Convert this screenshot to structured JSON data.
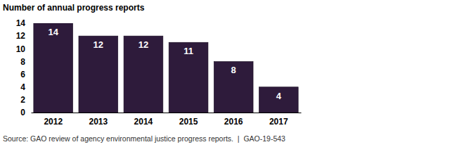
{
  "chart_data": {
    "type": "bar",
    "title": "Number of annual progress reports",
    "categories": [
      "2012",
      "2013",
      "2014",
      "2015",
      "2016",
      "2017"
    ],
    "values": [
      14,
      12,
      12,
      11,
      8,
      4
    ],
    "color": "#2e1b3b",
    "ylim": [
      0,
      14
    ],
    "yticks": [
      0,
      2,
      4,
      6,
      8,
      10,
      12,
      14
    ],
    "data_labels": true,
    "source": "Source: GAO review of agency environmental justice progress reports.  |  GAO-19-543"
  }
}
